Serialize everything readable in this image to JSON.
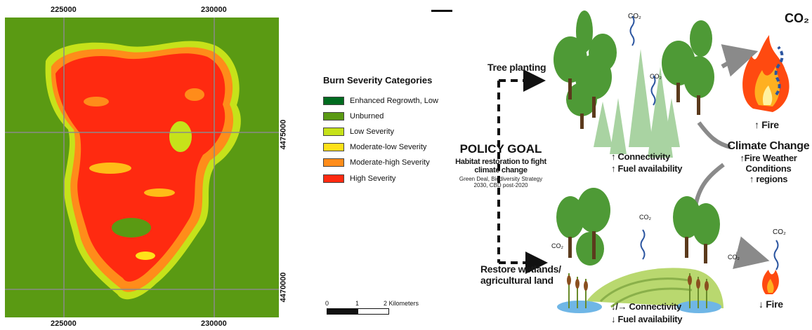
{
  "map": {
    "x_ticks_top": [
      "225000",
      "230000"
    ],
    "x_ticks_bottom": [
      "225000",
      "230000"
    ],
    "y_ticks": [
      "4475000",
      "4470000"
    ]
  },
  "legend": {
    "title": "Burn Severity Categories",
    "items": [
      {
        "label": "Enhanced Regrowth, Low",
        "color": "#006b1f"
      },
      {
        "label": "Unburned",
        "color": "#5a9a13"
      },
      {
        "label": "Low Severity",
        "color": "#c6e21a"
      },
      {
        "label": "Moderate-low Severity",
        "color": "#ffe119"
      },
      {
        "label": "Moderate-high Severity",
        "color": "#ff8c1a"
      },
      {
        "label": "High Severity",
        "color": "#ff2a10"
      }
    ]
  },
  "scalebar": {
    "labels": [
      "0",
      "1",
      "2 Kilometers"
    ]
  },
  "diagram": {
    "tree_planting": "Tree planting",
    "policy_goal": "POLICY GOAL",
    "policy_sub_1": "Habitat restoration to fight",
    "policy_sub_2": "climate change",
    "policy_small_1": "Green Deal, Biodiversity Strategy",
    "policy_small_2": "2030, CBD post-2020",
    "restore_1": "Restore wetlands/",
    "restore_2": "agricultural land",
    "top_connectivity": "↑ Connectivity",
    "top_fuel": "↑ Fuel availability",
    "bottom_connectivity": "↓/→ Connectivity",
    "bottom_fuel": "↓ Fuel availability",
    "fire_up": "↑ Fire",
    "fire_down": "↓ Fire",
    "climate_change": "Climate Change",
    "climate_1": "↑Fire Weather",
    "climate_2": "Conditions",
    "climate_3": "↑ regions",
    "co2": "CO₂",
    "co2_big": "CO₂"
  },
  "colors": {
    "unburned": "#5a9a13",
    "high": "#ff2a10",
    "moderate_high": "#ff8c1a",
    "low": "#c6e21a",
    "tree_dark": "#4e9a36",
    "tree_light": "#a9d3a2",
    "water": "#6fb6e6"
  }
}
